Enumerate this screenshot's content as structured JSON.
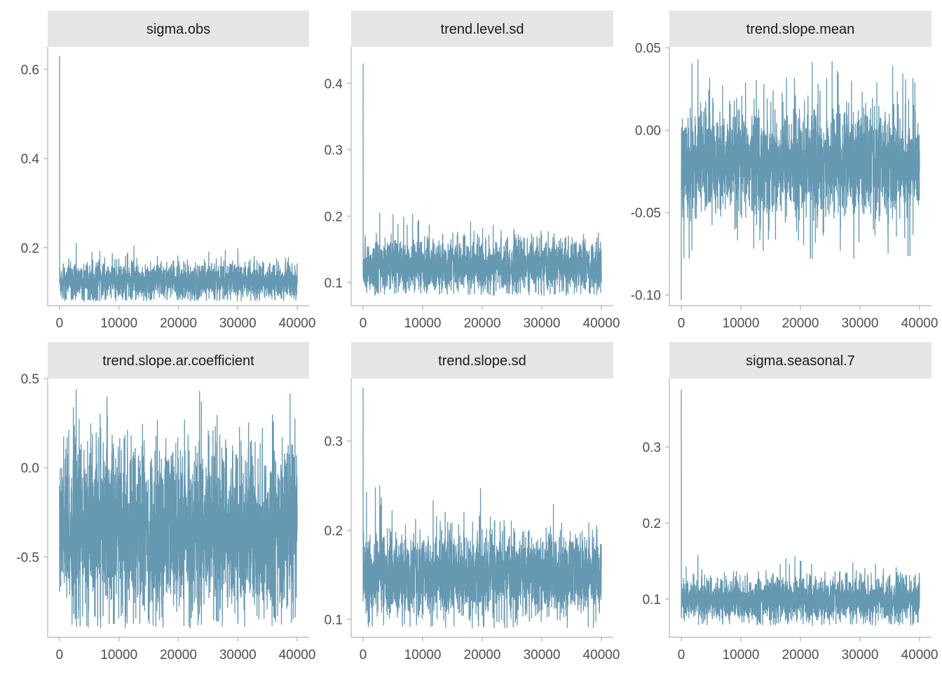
{
  "colors": {
    "trace": "#6598b1",
    "strip_bg": "#e5e5e5",
    "axis": "#b3b3b3",
    "tick_text": "#4d4d4d"
  },
  "chart_data": [
    {
      "type": "line",
      "title": "sigma.obs",
      "xlabel": "",
      "ylabel": "",
      "xlim": [
        -2000,
        42000
      ],
      "ylim": [
        0.07,
        0.65
      ],
      "x_ticks": [
        0,
        10000,
        20000,
        30000,
        40000
      ],
      "x_tick_labels": [
        "0",
        "10000",
        "20000",
        "30000",
        "40000"
      ],
      "y_ticks": [
        0.2,
        0.4,
        0.6
      ],
      "y_tick_labels": [
        "0.2",
        "0.4",
        "0.6"
      ],
      "grid": false,
      "series": [
        {
          "n_iterations": 40000,
          "initial_value": 0.63,
          "center": 0.125,
          "band_low": 0.095,
          "band_high": 0.16,
          "min": 0.08,
          "max": 0.21
        }
      ]
    },
    {
      "type": "line",
      "title": "trend.level.sd",
      "xlabel": "",
      "ylabel": "",
      "xlim": [
        -2000,
        42000
      ],
      "ylim": [
        0.065,
        0.455
      ],
      "x_ticks": [
        0,
        10000,
        20000,
        30000,
        40000
      ],
      "x_tick_labels": [
        "0",
        "10000",
        "20000",
        "30000",
        "40000"
      ],
      "y_ticks": [
        0.1,
        0.2,
        0.3,
        0.4
      ],
      "y_tick_labels": [
        "0.1",
        "0.2",
        "0.3",
        "0.4"
      ],
      "grid": false,
      "series": [
        {
          "n_iterations": 40000,
          "initial_value": 0.43,
          "center": 0.125,
          "band_low": 0.1,
          "band_high": 0.16,
          "min": 0.08,
          "max": 0.205
        }
      ]
    },
    {
      "type": "line",
      "title": "trend.slope.mean",
      "xlabel": "",
      "ylabel": "",
      "xlim": [
        -2000,
        42000
      ],
      "ylim": [
        -0.1065,
        0.0505
      ],
      "x_ticks": [
        0,
        10000,
        20000,
        30000,
        40000
      ],
      "x_tick_labels": [
        "0",
        "10000",
        "20000",
        "30000",
        "40000"
      ],
      "y_ticks": [
        -0.1,
        -0.05,
        0.0,
        0.05
      ],
      "y_tick_labels": [
        "-0.10",
        "-0.05",
        "0.00",
        "0.05"
      ],
      "grid": false,
      "series": [
        {
          "n_iterations": 40000,
          "initial_value": -0.103,
          "center": -0.02,
          "band_low": -0.045,
          "band_high": 0.005,
          "min": -0.078,
          "max": 0.043
        }
      ]
    },
    {
      "type": "line",
      "title": "trend.slope.ar.coefficient",
      "xlabel": "",
      "ylabel": "",
      "xlim": [
        -2000,
        42000
      ],
      "ylim": [
        -0.95,
        0.5
      ],
      "x_ticks": [
        0,
        10000,
        20000,
        30000,
        40000
      ],
      "x_tick_labels": [
        "0",
        "10000",
        "20000",
        "30000",
        "40000"
      ],
      "y_ticks": [
        -0.5,
        0.0,
        0.5
      ],
      "y_tick_labels": [
        "-0.5",
        "0.0",
        "0.5"
      ],
      "grid": false,
      "series": [
        {
          "n_iterations": 40000,
          "initial_value": -0.1,
          "center": -0.35,
          "band_low": -0.72,
          "band_high": 0.02,
          "min": -0.9,
          "max": 0.44
        }
      ]
    },
    {
      "type": "line",
      "title": "trend.slope.sd",
      "xlabel": "",
      "ylabel": "",
      "xlim": [
        -2000,
        42000
      ],
      "ylim": [
        0.08,
        0.37
      ],
      "x_ticks": [
        0,
        10000,
        20000,
        30000,
        40000
      ],
      "x_tick_labels": [
        "0",
        "10000",
        "20000",
        "30000",
        "40000"
      ],
      "y_ticks": [
        0.1,
        0.2,
        0.3
      ],
      "y_tick_labels": [
        "0.1",
        "0.2",
        "0.3"
      ],
      "grid": false,
      "series": [
        {
          "n_iterations": 40000,
          "initial_value": 0.36,
          "center": 0.15,
          "band_low": 0.12,
          "band_high": 0.19,
          "min": 0.09,
          "max": 0.25
        }
      ]
    },
    {
      "type": "line",
      "title": "sigma.seasonal.7",
      "xlabel": "",
      "ylabel": "",
      "xlim": [
        -2000,
        42000
      ],
      "ylim": [
        0.05,
        0.39
      ],
      "x_ticks": [
        0,
        10000,
        20000,
        30000,
        40000
      ],
      "x_tick_labels": [
        "0",
        "10000",
        "20000",
        "30000",
        "40000"
      ],
      "y_ticks": [
        0.1,
        0.2,
        0.3
      ],
      "y_tick_labels": [
        "0.1",
        "0.2",
        "0.3"
      ],
      "grid": false,
      "series": [
        {
          "n_iterations": 40000,
          "initial_value": 0.375,
          "center": 0.1,
          "band_low": 0.08,
          "band_high": 0.125,
          "min": 0.065,
          "max": 0.158
        }
      ]
    }
  ]
}
